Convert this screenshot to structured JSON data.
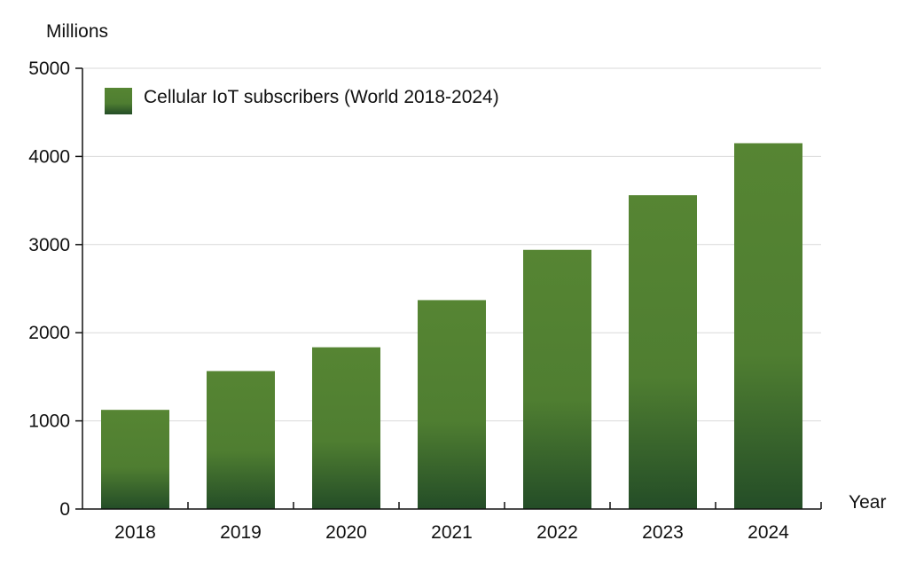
{
  "chart_data": {
    "type": "bar",
    "ylabel": "Millions",
    "xlabel": "Year",
    "categories": [
      "2018",
      "2019",
      "2020",
      "2021",
      "2022",
      "2023",
      "2024"
    ],
    "series": [
      {
        "name": "Cellular IoT subscribers (World 2018-2024)",
        "values": [
          1125,
          1565,
          1835,
          2370,
          2940,
          3560,
          4150
        ],
        "color": "#568533"
      }
    ],
    "ylim": [
      0,
      5000
    ],
    "yticks": [
      "0",
      "1000",
      "2000",
      "3000",
      "4000",
      "5000"
    ],
    "grid": true,
    "legend_placement": "top-left",
    "colors": {
      "bar_top": "#568533",
      "bar_bottom": "#244d27",
      "grid": "#d9d9d9",
      "axis": "#111111"
    }
  }
}
